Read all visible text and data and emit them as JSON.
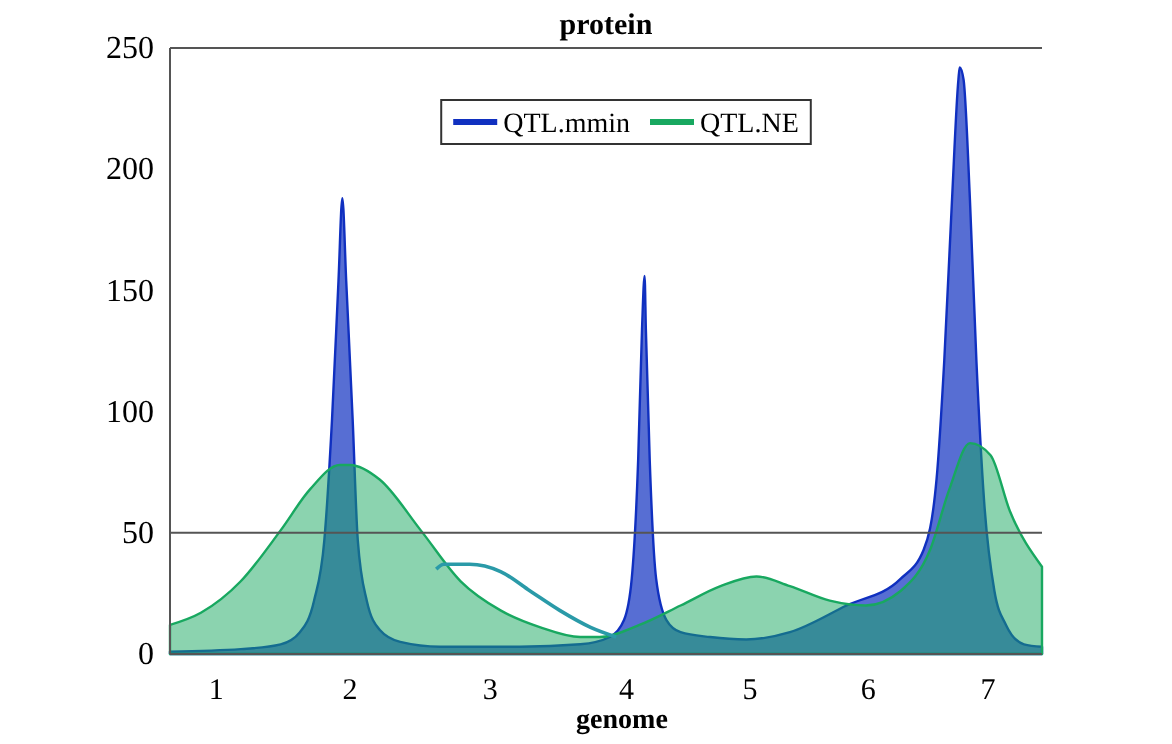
{
  "chart_data": {
    "type": "area",
    "title": "protein",
    "xlabel": "genome",
    "xlim": [
      0.64,
      7.42
    ],
    "ylim": [
      0,
      250
    ],
    "xticks": [
      {
        "value": 1,
        "label": "1"
      },
      {
        "value": 2.04,
        "label": "2"
      },
      {
        "value": 3.13,
        "label": "3"
      },
      {
        "value": 4.19,
        "label": "4"
      },
      {
        "value": 5.15,
        "label": "5"
      },
      {
        "value": 6.07,
        "label": "6"
      },
      {
        "value": 7,
        "label": "7"
      }
    ],
    "yticks": [
      0,
      50,
      100,
      150,
      200,
      250
    ],
    "grid": false,
    "legend": "top",
    "line_style": "solid",
    "marker": "none",
    "ref_lines": [
      {
        "axis": "y",
        "value": 50,
        "color": "#555555"
      }
    ],
    "series": [
      {
        "name": "QTL.mmin",
        "color": "#1030c0",
        "x": [
          0.64,
          1.19,
          1.5,
          1.65,
          1.76,
          1.84,
          1.9,
          1.95,
          1.98,
          2.01,
          2.06,
          2.1,
          2.17,
          2.27,
          2.43,
          2.74,
          3.36,
          3.83,
          4.06,
          4.17,
          4.23,
          4.28,
          4.31,
          4.33,
          4.34,
          4.37,
          4.42,
          4.5,
          4.61,
          4.84,
          5.12,
          5.46,
          5.9,
          6.32,
          6.5,
          6.6,
          6.66,
          6.72,
          6.77,
          6.78,
          6.81,
          6.86,
          6.91,
          6.97,
          7.05,
          7.14,
          7.28,
          7.42
        ],
        "values": [
          1,
          2,
          4,
          9,
          22,
          47,
          97,
          154,
          188,
          154,
          97,
          47,
          22,
          10,
          5,
          3,
          3,
          4,
          7,
          14,
          31,
          80,
          134,
          156,
          134,
          80,
          31,
          14,
          9,
          7,
          6,
          9,
          20,
          31,
          43,
          72,
          121,
          187,
          237,
          242,
          237,
          187,
          121,
          63,
          26,
          12,
          4,
          3
        ]
      },
      {
        "name": "QTL.NE",
        "color": "#18a860",
        "x": [
          0.64,
          0.88,
          1.19,
          1.5,
          1.73,
          1.96,
          2.04,
          2.27,
          2.59,
          2.9,
          3.21,
          3.52,
          3.83,
          3.98,
          4.29,
          4.61,
          4.92,
          5.2,
          5.46,
          5.77,
          6.05,
          6.32,
          6.55,
          6.7,
          6.86,
          7.02,
          7.17,
          7.42
        ],
        "values": [
          12,
          17,
          30,
          51,
          68,
          78,
          78,
          72,
          51,
          30,
          18,
          11,
          7,
          7,
          12,
          20,
          28,
          32,
          28,
          22,
          20,
          26,
          43,
          68,
          87,
          82,
          59,
          36
        ]
      },
      {
        "type": "line",
        "color": "#2a9aa8",
        "x": [
          2.71,
          2.77,
          2.97,
          3.21,
          3.44,
          3.67,
          3.91,
          4.11
        ],
        "values": [
          35,
          37,
          37,
          34,
          26,
          18,
          11,
          7
        ]
      }
    ]
  }
}
